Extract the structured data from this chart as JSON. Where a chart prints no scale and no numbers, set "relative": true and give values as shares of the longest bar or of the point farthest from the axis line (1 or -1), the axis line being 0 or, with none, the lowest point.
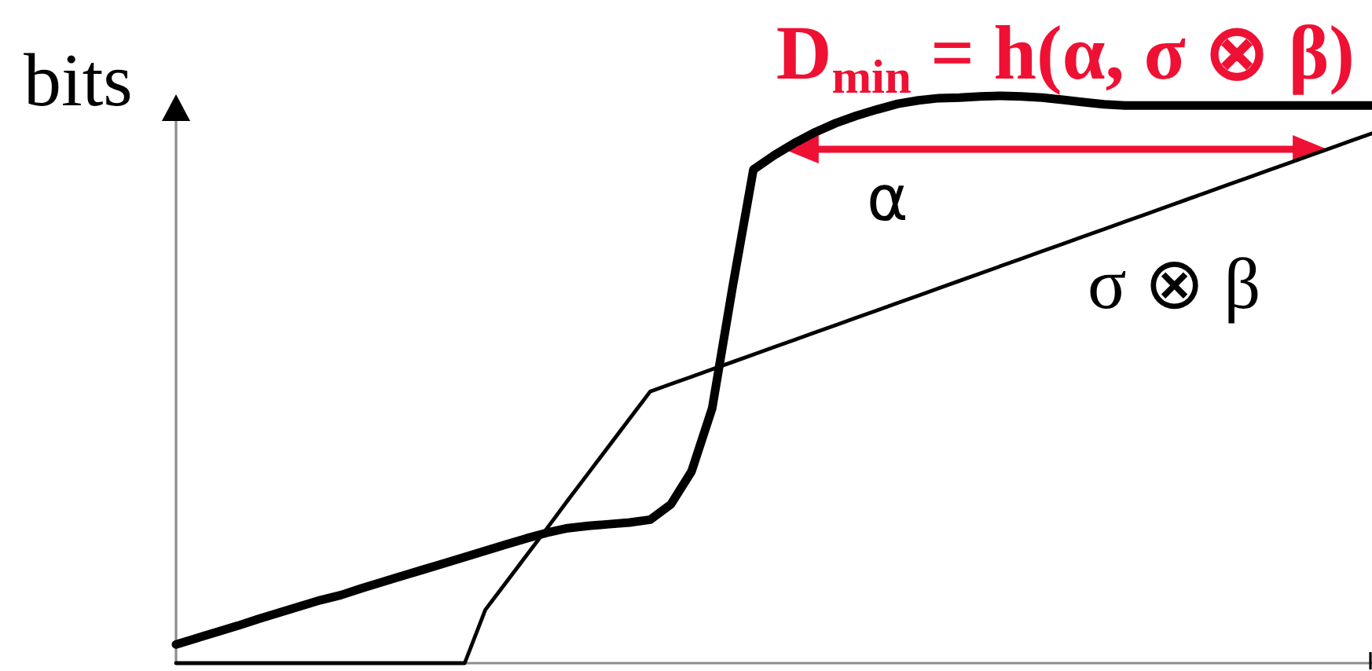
{
  "chart_data": {
    "type": "line",
    "relative": true,
    "ylabel": "bits",
    "legend": false,
    "categories": [
      null,
      null,
      null,
      null,
      null,
      null,
      null,
      null,
      null,
      null,
      null,
      null,
      null,
      null,
      null,
      null,
      null,
      null,
      null,
      null,
      null,
      null,
      null,
      null,
      null,
      null,
      null,
      null,
      null,
      null,
      null,
      null,
      null,
      null,
      null,
      null,
      null,
      null,
      null,
      null,
      null,
      null,
      null,
      null,
      null,
      null,
      null,
      null,
      null,
      null,
      null,
      null,
      null,
      null,
      null,
      null,
      null,
      null,
      null
    ],
    "series": [
      {
        "name": "α",
        "color": "#000000",
        "values": [
          0.033,
          0.044,
          0.055,
          0.066,
          0.078,
          0.089,
          0.1,
          0.111,
          0.12,
          0.132,
          0.143,
          0.154,
          0.165,
          0.176,
          0.187,
          0.198,
          0.209,
          0.22,
          0.23,
          0.238,
          0.242,
          0.245,
          0.248,
          0.253,
          0.28,
          0.338,
          0.449,
          0.665,
          0.87,
          0.895,
          0.917,
          0.936,
          0.952,
          0.965,
          0.976,
          0.986,
          0.992,
          0.996,
          0.997,
          0.999,
          1,
          0.999,
          0.997,
          0.993,
          0.989,
          0.985,
          0.983,
          0.983,
          0.983,
          0.983,
          0.983,
          0.983,
          0.983,
          0.983,
          0.983,
          0.983,
          0.983,
          0.983,
          0.983
        ]
      },
      {
        "name": "σ ⊗ β",
        "color": "#000000",
        "values": [
          0,
          0,
          0,
          0,
          0,
          0,
          0,
          0,
          0,
          0,
          0,
          0,
          0,
          0,
          0,
          0.094,
          0.142,
          0.19,
          0.238,
          0.287,
          0.335,
          0.383,
          0.431,
          0.479,
          0.492,
          0.505,
          0.518,
          0.531,
          0.544,
          0.557,
          0.57,
          0.583,
          0.596,
          0.609,
          0.622,
          0.635,
          0.648,
          0.661,
          0.674,
          0.687,
          0.7,
          0.713,
          0.726,
          0.739,
          0.752,
          0.765,
          0.778,
          0.791,
          0.804,
          0.817,
          0.83,
          0.843,
          0.856,
          0.869,
          0.882,
          0.895,
          0.908,
          0.921,
          0.934
        ]
      }
    ],
    "annotations": [
      "D$_{min}$ = h(α, σ ⊗ β)"
    ]
  }
}
